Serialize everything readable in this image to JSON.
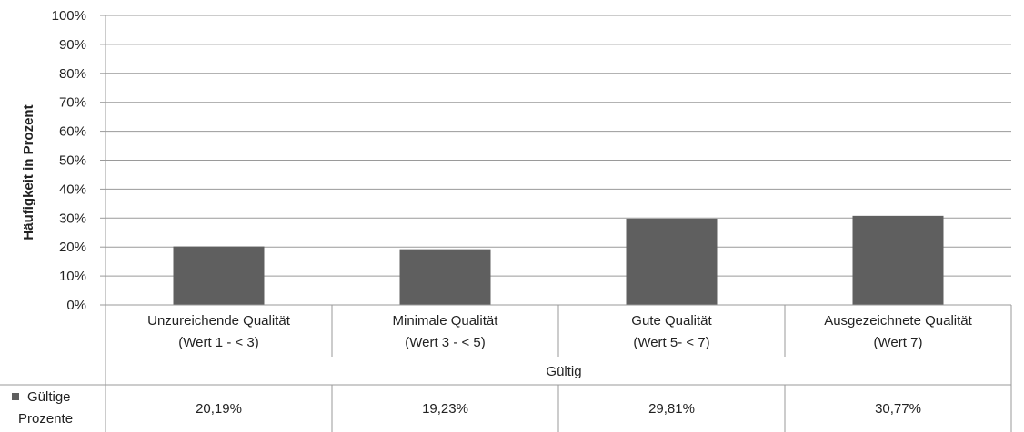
{
  "chart_data": {
    "type": "bar",
    "ylabel": "Häufigkeit in Prozent",
    "ylim": [
      0,
      100
    ],
    "y_ticks": [
      "0%",
      "10%",
      "20%",
      "30%",
      "40%",
      "50%",
      "60%",
      "70%",
      "80%",
      "90%",
      "100%"
    ],
    "categories": [
      [
        "Unzureichende Qualität",
        "(Wert 1 - < 3)"
      ],
      [
        "Minimale Qualität",
        "(Wert 3 - < 5)"
      ],
      [
        "Gute Qualität",
        "(Wert 5- < 7)"
      ],
      [
        "Ausgezeichnete Qualität",
        "(Wert 7)"
      ]
    ],
    "group_label": "Gültig",
    "series": [
      {
        "name": "Gültige Prozente",
        "values": [
          20.19,
          19.23,
          29.81,
          30.77
        ],
        "data_labels": [
          "20,19%",
          "19,23%",
          "29,81%",
          "30,77%"
        ]
      }
    ],
    "legend_label_lines": [
      "Gültige",
      "Prozente"
    ],
    "bar_color": "#5f5f5f",
    "grid": true,
    "legend": "data-table"
  }
}
